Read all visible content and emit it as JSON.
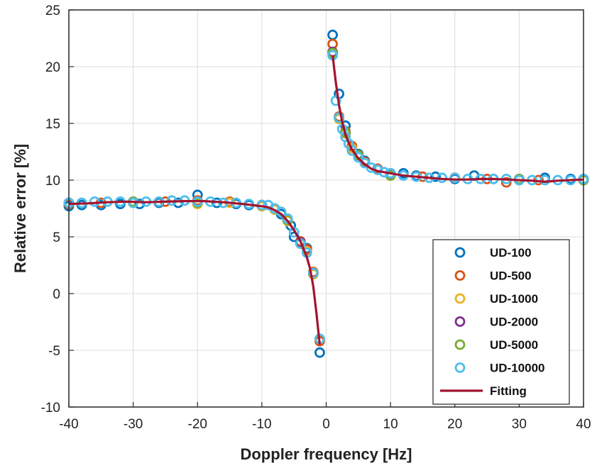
{
  "chart_data": {
    "type": "scatter",
    "title": "",
    "xlabel": "Doppler frequency [Hz]",
    "ylabel": "Relative error [%]",
    "xlim": [
      -40,
      40
    ],
    "ylim": [
      -10,
      25
    ],
    "xticks": [
      -40,
      -30,
      -20,
      -10,
      0,
      10,
      20,
      30,
      40
    ],
    "yticks": [
      -10,
      -5,
      0,
      5,
      10,
      15,
      20,
      25
    ],
    "grid": true,
    "legend_position": "bottom-right",
    "series": [
      {
        "name": "UD-100",
        "color": "#0072BD",
        "marker": "circle-open",
        "x": [
          -40,
          -38,
          -35,
          -32,
          -29,
          -26,
          -23,
          -20,
          -17,
          -14,
          -12,
          -10,
          -8,
          -7,
          -6,
          -5.5,
          -5,
          -4,
          -3,
          -2,
          -1,
          1,
          2,
          3,
          4,
          5,
          6,
          8,
          10,
          12,
          14,
          17,
          20,
          23,
          26,
          30,
          34,
          38,
          40
        ],
        "y": [
          7.7,
          7.8,
          7.8,
          7.9,
          7.9,
          8.0,
          8.0,
          8.7,
          8.0,
          7.9,
          7.8,
          7.7,
          7.4,
          7.0,
          6.5,
          6.0,
          5.0,
          4.5,
          4.0,
          1.8,
          -5.2,
          22.8,
          17.6,
          14.8,
          13.0,
          12.3,
          11.7,
          11.0,
          10.6,
          10.6,
          10.4,
          10.3,
          10.1,
          10.4,
          10.1,
          10.0,
          10.2,
          10.1,
          10.1
        ]
      },
      {
        "name": "UD-500",
        "color": "#D95319",
        "marker": "circle-open",
        "x": [
          -40,
          -35,
          -30,
          -25,
          -20,
          -15,
          -10,
          -8,
          -6,
          -4,
          -3,
          -2,
          -1,
          1,
          2,
          3,
          4,
          5,
          6,
          8,
          10,
          15,
          20,
          25,
          28,
          33,
          40
        ],
        "y": [
          7.9,
          8.0,
          8.0,
          8.1,
          8.2,
          8.1,
          7.8,
          7.5,
          6.6,
          4.6,
          3.9,
          1.9,
          -4.2,
          22.0,
          15.6,
          14.3,
          13.0,
          12.2,
          11.6,
          11.0,
          10.5,
          10.3,
          10.2,
          10.1,
          9.8,
          10.0,
          10.1
        ]
      },
      {
        "name": "UD-1000",
        "color": "#EDB120",
        "marker": "circle-open",
        "x": [
          -40,
          -30,
          -20,
          -15,
          -10,
          -8,
          -6,
          -4,
          -3,
          -2,
          -1,
          1,
          2,
          3,
          4,
          6,
          10,
          20,
          30,
          40
        ],
        "y": [
          8.0,
          8.0,
          7.9,
          8.0,
          7.7,
          7.4,
          6.4,
          4.4,
          3.7,
          1.7,
          -4.0,
          21.2,
          15.4,
          14.1,
          12.8,
          11.5,
          10.4,
          10.2,
          10.0,
          10.0
        ]
      },
      {
        "name": "UD-2000",
        "color": "#7E2F8E",
        "marker": "circle-open",
        "x": [
          -40,
          -30,
          -20,
          -10,
          -6,
          -4,
          -2,
          -1,
          1,
          2,
          3,
          5,
          10,
          20,
          30,
          40
        ],
        "y": [
          8.0,
          8.1,
          8.1,
          7.8,
          6.5,
          4.5,
          1.8,
          -4.0,
          21.3,
          15.5,
          14.2,
          12.2,
          10.5,
          10.2,
          10.1,
          10.0
        ]
      },
      {
        "name": "UD-5000",
        "color": "#77AC30",
        "marker": "circle-open",
        "x": [
          -40,
          -30,
          -20,
          -10,
          -6,
          -4,
          -2,
          -1,
          1,
          2,
          3,
          5,
          10,
          20,
          30,
          40
        ],
        "y": [
          8.0,
          8.1,
          8.0,
          7.8,
          6.5,
          4.4,
          1.8,
          -4.0,
          21.2,
          15.5,
          14.2,
          12.2,
          10.4,
          10.2,
          10.1,
          10.0
        ]
      },
      {
        "name": "UD-10000",
        "color": "#4DBEEE",
        "marker": "circle-open",
        "x": [
          -40,
          -38,
          -36,
          -34,
          -32,
          -30,
          -28,
          -26,
          -24,
          -22,
          -20,
          -18,
          -16,
          -14,
          -12,
          -10,
          -9,
          -8,
          -7,
          -6,
          -5,
          -4,
          -3,
          -2,
          -1,
          1,
          1.5,
          2,
          2.5,
          3,
          3.5,
          4,
          5,
          6,
          7,
          8,
          9,
          10,
          12,
          14,
          16,
          18,
          20,
          22,
          24,
          26,
          28,
          30,
          32,
          34,
          36,
          38,
          40
        ],
        "y": [
          8.0,
          8.0,
          8.1,
          8.1,
          8.1,
          8.0,
          8.1,
          8.1,
          8.2,
          8.2,
          8.1,
          8.1,
          8.0,
          8.0,
          7.9,
          7.8,
          7.8,
          7.5,
          7.2,
          6.6,
          5.4,
          4.4,
          3.6,
          1.8,
          -4.0,
          21.0,
          17.0,
          15.5,
          14.5,
          13.8,
          13.2,
          12.6,
          12.0,
          11.5,
          11.1,
          10.9,
          10.7,
          10.6,
          10.4,
          10.3,
          10.2,
          10.2,
          10.2,
          10.1,
          10.1,
          10.1,
          10.1,
          10.0,
          10.0,
          10.0,
          10.0,
          10.0,
          10.1
        ]
      }
    ],
    "fit": {
      "name": "Fitting",
      "color": "#A2142F",
      "left": {
        "x": [
          -40,
          -37,
          -34,
          -31,
          -28,
          -25,
          -22,
          -19,
          -16,
          -13,
          -10,
          -9,
          -8,
          -7,
          -6,
          -5,
          -4,
          -3,
          -2.5,
          -2,
          -1.5,
          -1
        ],
        "y": [
          7.9,
          7.95,
          8.05,
          8.1,
          8.05,
          8.1,
          8.15,
          8.15,
          8.05,
          7.9,
          7.7,
          7.6,
          7.35,
          7.0,
          6.4,
          5.6,
          4.6,
          3.2,
          2.2,
          0.6,
          -1.8,
          -4.5
        ]
      },
      "right": {
        "x": [
          1,
          1.5,
          2,
          2.5,
          3,
          3.5,
          4,
          5,
          6,
          7,
          8,
          9,
          10,
          12,
          14,
          16,
          18,
          20,
          22,
          24,
          26,
          28,
          30,
          32,
          34,
          36,
          38,
          40
        ],
        "y": [
          21.0,
          18.6,
          16.6,
          15.1,
          14.0,
          13.3,
          12.7,
          11.9,
          11.4,
          11.0,
          10.8,
          10.7,
          10.6,
          10.4,
          10.3,
          10.2,
          10.1,
          10.05,
          10.05,
          10.1,
          10.1,
          10.05,
          10.0,
          9.95,
          9.85,
          9.95,
          10.0,
          10.05
        ]
      }
    }
  }
}
